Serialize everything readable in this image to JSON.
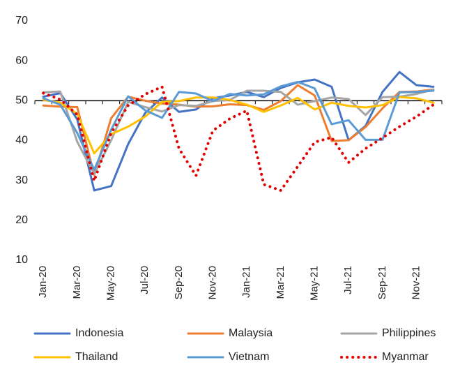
{
  "chart_data": {
    "type": "line",
    "categories": [
      "Jan-20",
      null,
      "Mar-20",
      null,
      "May-20",
      null,
      "Jul-20",
      null,
      "Sep-20",
      null,
      "Nov-20",
      null,
      "Jan-21",
      null,
      "Mar-21",
      null,
      "May-21",
      null,
      "Jul-21",
      null,
      "Sep-21",
      null,
      "Nov-21",
      null
    ],
    "series": [
      {
        "name": "Indonesia",
        "color": "#4472c4",
        "values": [
          51.0,
          51.9,
          45.3,
          27.5,
          28.6,
          39.1,
          46.9,
          50.8,
          47.2,
          47.8,
          50.6,
          51.3,
          52.2,
          50.9,
          53.2,
          54.6,
          55.3,
          53.5,
          40.1,
          43.7,
          52.2,
          57.2,
          53.9,
          53.5
        ]
      },
      {
        "name": "Malaysia",
        "color": "#ed7d31",
        "values": [
          48.8,
          48.5,
          48.4,
          31.3,
          45.6,
          51.0,
          50.0,
          49.3,
          49.0,
          48.5,
          48.6,
          49.1,
          48.9,
          47.7,
          49.9,
          53.9,
          51.3,
          39.9,
          40.1,
          43.4,
          48.1,
          52.2,
          52.3,
          52.8
        ]
      },
      {
        "name": "Philippines",
        "color": "#a5a5a5",
        "values": [
          52.1,
          52.3,
          39.7,
          31.6,
          40.1,
          49.7,
          48.4,
          47.3,
          48.9,
          48.7,
          49.9,
          50.2,
          52.5,
          52.5,
          52.2,
          49.0,
          49.9,
          50.8,
          50.4,
          46.4,
          50.9,
          51.0,
          51.7,
          52.8
        ]
      },
      {
        "name": "Thailand",
        "color": "#ffc000",
        "values": [
          50.2,
          49.5,
          46.7,
          36.8,
          41.6,
          43.5,
          46.0,
          49.7,
          49.9,
          50.8,
          50.8,
          50.2,
          49.0,
          47.2,
          48.8,
          50.7,
          47.8,
          49.5,
          48.7,
          48.3,
          48.9,
          50.9,
          50.6,
          49.5
        ]
      },
      {
        "name": "Vietnam",
        "color": "#5b9bd5",
        "values": [
          50.6,
          49.0,
          41.9,
          32.7,
          42.7,
          51.1,
          47.6,
          45.7,
          52.2,
          51.8,
          49.9,
          51.7,
          51.3,
          51.6,
          53.6,
          54.7,
          53.1,
          44.1,
          45.1,
          40.2,
          40.2,
          52.1,
          52.2,
          52.5
        ]
      },
      {
        "name": "Myanmar",
        "color": "#e00000",
        "dash": "dot",
        "values": [
          51.9,
          50.3,
          46.5,
          29.9,
          41.9,
          48.8,
          51.6,
          53.5,
          38.0,
          31.2,
          42.5,
          45.5,
          47.5,
          29.0,
          27.5,
          33.5,
          39.6,
          40.8,
          34.5,
          38.0,
          40.7,
          43.5,
          46.0,
          49.0
        ]
      }
    ],
    "ylim": [
      10,
      70
    ],
    "yticks": [
      10,
      20,
      30,
      40,
      50,
      60,
      70
    ],
    "x_axis_at": 50,
    "grid": false,
    "legend": "bottom"
  }
}
